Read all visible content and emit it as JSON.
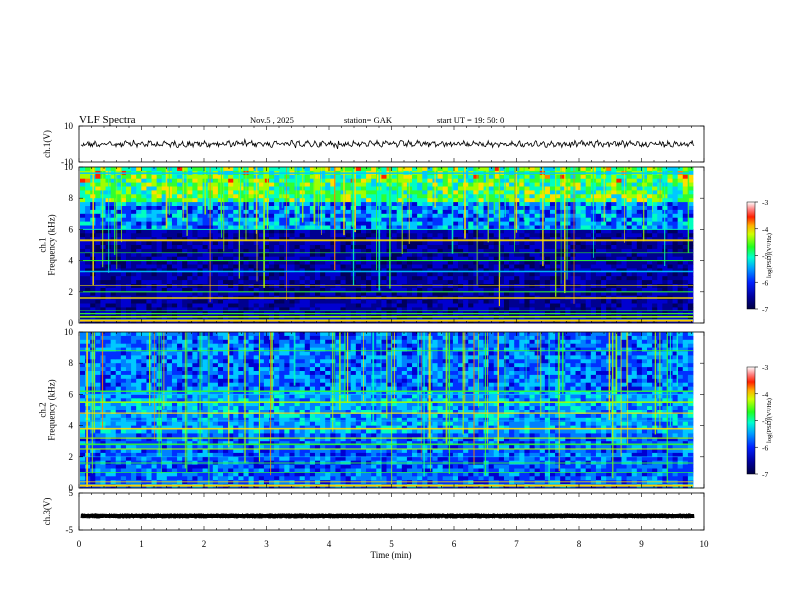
{
  "header": {
    "title": "VLF  Spectra",
    "date": "Nov.5   , 2025",
    "station": "station= GAK",
    "start": "start  UT  =    19: 50: 0"
  },
  "chart_data": [
    {
      "type": "line",
      "panel": "ch1-waveform",
      "ylabel": "ch.1(V)",
      "ylim": [
        -10,
        10
      ],
      "ytick_labels": [
        "10",
        "-10"
      ],
      "baseline": 0,
      "color": "#000000"
    },
    {
      "type": "heatmap",
      "panel": "ch1-spectrogram",
      "ylabel": "ch.1\nFrequency  (kHz)",
      "ylim": [
        0,
        10
      ],
      "ytick_labels": [
        "0",
        "2",
        "4",
        "6",
        "8",
        "10"
      ],
      "colorbar": {
        "label": "log(PSD)(V²/Hz)",
        "range": [
          -7,
          -3
        ],
        "tick_labels": [
          "-3",
          "-4",
          "-5",
          "-6",
          "-7"
        ]
      }
    },
    {
      "type": "heatmap",
      "panel": "ch2-spectrogram",
      "ylabel": "ch.2\nFrequency  (kHz)",
      "ylim": [
        0,
        10
      ],
      "ytick_labels": [
        "0",
        "2",
        "4",
        "6",
        "8",
        "10"
      ],
      "colorbar": {
        "label": "log(PSD)(V²/Hz)",
        "range": [
          -7,
          -3
        ],
        "tick_labels": [
          "-3",
          "-4",
          "-5",
          "-6",
          "-7"
        ]
      }
    },
    {
      "type": "line",
      "panel": "ch3-waveform",
      "ylabel": "ch.3(V)",
      "ylim": [
        -5,
        5
      ],
      "ytick_labels": [
        "5",
        "-5"
      ],
      "baseline": -1.2,
      "color": "#000000"
    }
  ],
  "xaxis": {
    "label": "Time  (min)",
    "range": [
      0,
      10
    ],
    "tick_labels": [
      "0",
      "1",
      "2",
      "3",
      "4",
      "5",
      "6",
      "7",
      "8",
      "9",
      "10"
    ]
  }
}
